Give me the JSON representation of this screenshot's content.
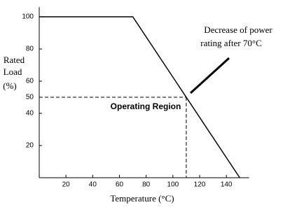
{
  "chart_data": {
    "type": "line",
    "x_label": "Temperature (°C)",
    "y_label": [
      "Rated",
      "Load",
      "(%)"
    ],
    "annotation": [
      "Decrease of power",
      "rating after 70°C"
    ],
    "region_label": "Operating Region",
    "x": [
      0,
      70,
      150
    ],
    "series": [
      {
        "color": "#000000",
        "values": [
          100,
          100,
          0
        ]
      }
    ],
    "reference": {
      "x": 110,
      "y": 50
    },
    "xlim": [
      0,
      157
    ],
    "xticks": [
      20,
      40,
      60,
      80,
      100,
      120,
      140
    ],
    "ylim": [
      0,
      106
    ],
    "yticks": [
      20,
      40,
      50,
      60,
      80,
      100
    ]
  }
}
